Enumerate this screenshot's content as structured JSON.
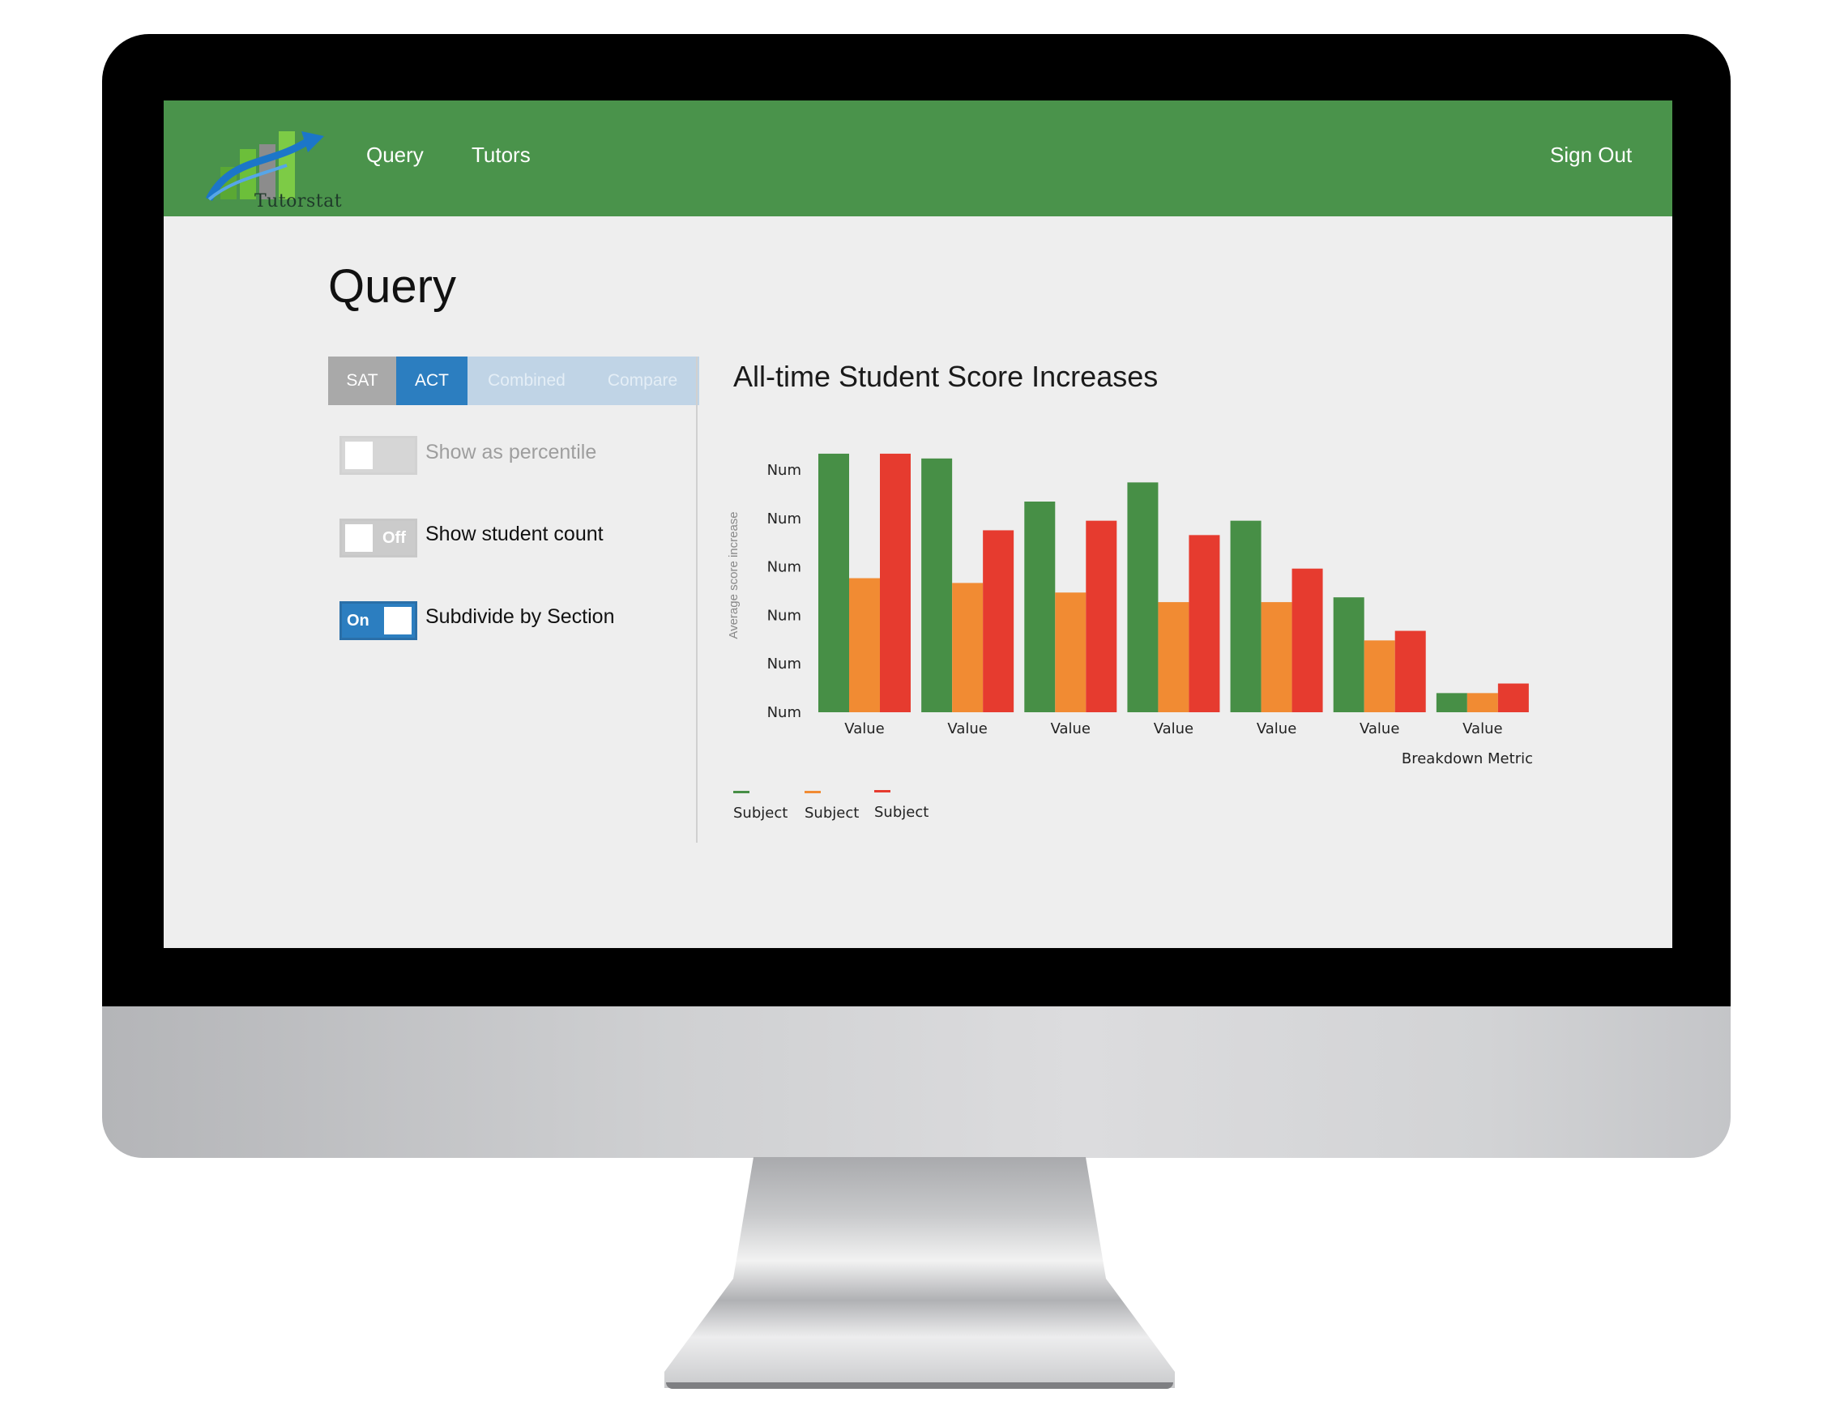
{
  "app": {
    "logo_text": "Tutorstat"
  },
  "nav": {
    "links": [
      "Query",
      "Tutors"
    ],
    "sign_out": "Sign Out"
  },
  "page": {
    "title": "Query"
  },
  "tabs": [
    {
      "label": "SAT",
      "state": "inactive"
    },
    {
      "label": "ACT",
      "state": "selected"
    },
    {
      "label": "Combined",
      "state": "disabled"
    },
    {
      "label": "Compare",
      "state": "disabled"
    }
  ],
  "options": [
    {
      "label": "Show as percentile",
      "state": "",
      "enabled": false
    },
    {
      "label": "Show student count",
      "state": "Off",
      "enabled": true
    },
    {
      "label": "Subdivide by Section",
      "state": "On",
      "enabled": true
    }
  ],
  "colors": {
    "nav_green": "#4a934b",
    "accent_blue": "#2c7ec0",
    "series": [
      "#478f46",
      "#f18b33",
      "#e63b2f"
    ]
  },
  "chart_data": {
    "type": "bar",
    "title": "All-time Student Score Increases",
    "xlabel": "Breakdown Metric",
    "ylabel": "Average score increase",
    "categories": [
      "Value",
      "Value",
      "Value",
      "Value",
      "Value",
      "Value",
      "Value"
    ],
    "y_tick_labels": [
      "Num",
      "Num",
      "Num",
      "Num",
      "Num",
      "Num"
    ],
    "ylim": [
      0,
      5.5
    ],
    "grid": false,
    "legend_position": "bottom-left",
    "series": [
      {
        "name": "Subject",
        "color": "#478f46",
        "values": [
          5.4,
          5.3,
          4.4,
          4.8,
          4.0,
          2.4,
          0.4
        ]
      },
      {
        "name": "Subject",
        "color": "#f18b33",
        "values": [
          2.8,
          2.7,
          2.5,
          2.3,
          2.3,
          1.5,
          0.4
        ]
      },
      {
        "name": "Subject",
        "color": "#e63b2f",
        "values": [
          5.4,
          3.8,
          4.0,
          3.7,
          3.0,
          1.7,
          0.6
        ]
      }
    ]
  }
}
